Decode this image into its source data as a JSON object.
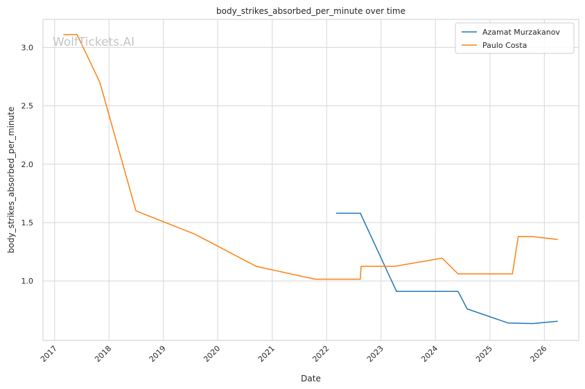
{
  "chart_data": {
    "type": "line",
    "title": "body_strikes_absorbed_per_minute over time",
    "xlabel": "Date",
    "ylabel": "body_strikes_absorbed_per_minute",
    "watermark": "WolfTickets.AI",
    "x_ticks": [
      "2017",
      "2018",
      "2019",
      "2020",
      "2021",
      "2022",
      "2023",
      "2024",
      "2025",
      "2026"
    ],
    "y_ticks": [
      "1.0",
      "1.5",
      "2.0",
      "2.5",
      "3.0"
    ],
    "xlim": [
      "2016-10-15",
      "2026-08-20"
    ],
    "ylim": [
      0.49,
      3.24
    ],
    "grid": true,
    "legend_position": "top-right",
    "series": [
      {
        "name": "Azamat Murzakanov",
        "color": "#1f77b4",
        "points": [
          {
            "x": "2022-03-05",
            "y": 1.58
          },
          {
            "x": "2022-08-15",
            "y": 1.58
          },
          {
            "x": "2023-04-15",
            "y": 0.91
          },
          {
            "x": "2024-06-01",
            "y": 0.91
          },
          {
            "x": "2024-08-01",
            "y": 0.76
          },
          {
            "x": "2025-05-01",
            "y": 0.64
          },
          {
            "x": "2025-10-15",
            "y": 0.635
          },
          {
            "x": "2026-04-01",
            "y": 0.655
          }
        ]
      },
      {
        "name": "Paulo Costa",
        "color": "#ff7f0e",
        "points": [
          {
            "x": "2017-03-01",
            "y": 3.11
          },
          {
            "x": "2017-06-01",
            "y": 3.11
          },
          {
            "x": "2017-11-01",
            "y": 2.7
          },
          {
            "x": "2018-07-01",
            "y": 1.6
          },
          {
            "x": "2019-08-01",
            "y": 1.4
          },
          {
            "x": "2020-09-15",
            "y": 1.125
          },
          {
            "x": "2021-10-15",
            "y": 1.015
          },
          {
            "x": "2022-08-15",
            "y": 1.015
          },
          {
            "x": "2022-08-20",
            "y": 1.125
          },
          {
            "x": "2023-04-01",
            "y": 1.125
          },
          {
            "x": "2024-02-15",
            "y": 1.195
          },
          {
            "x": "2024-06-01",
            "y": 1.06
          },
          {
            "x": "2025-06-01",
            "y": 1.06
          },
          {
            "x": "2025-07-10",
            "y": 1.38
          },
          {
            "x": "2025-10-15",
            "y": 1.38
          },
          {
            "x": "2026-04-01",
            "y": 1.355
          }
        ]
      }
    ]
  }
}
